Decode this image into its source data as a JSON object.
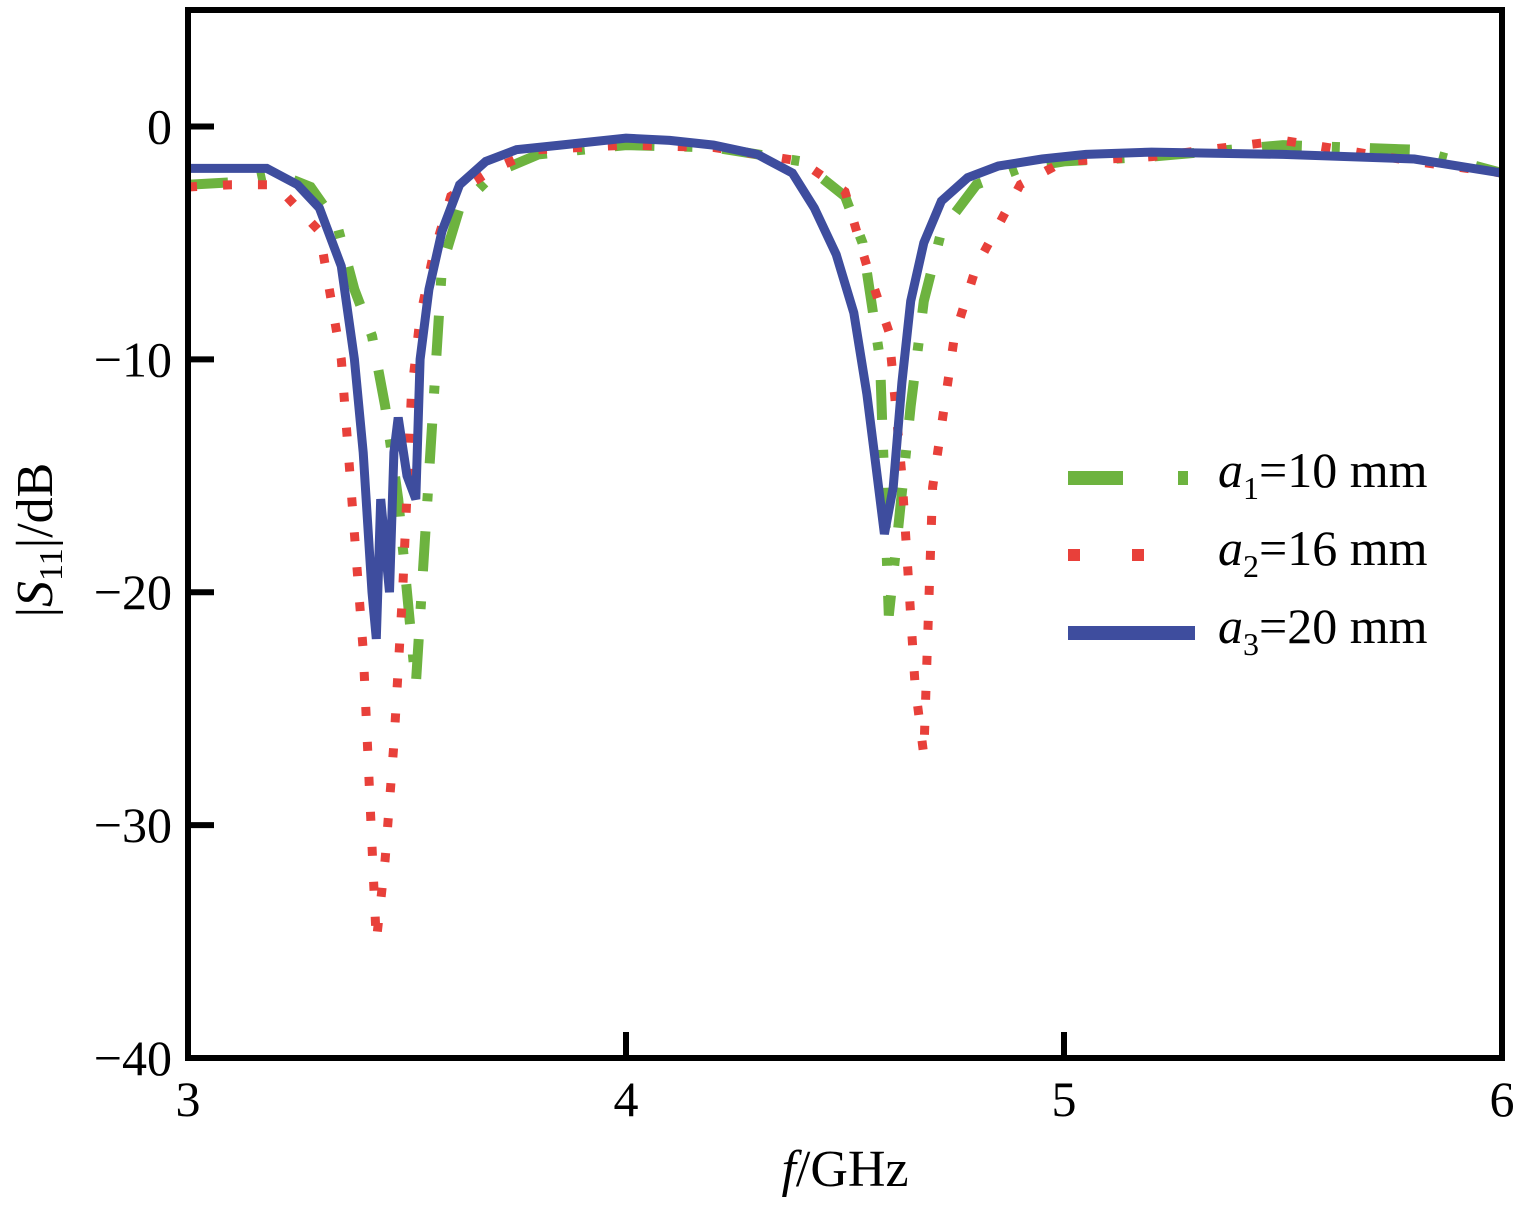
{
  "chart_data": {
    "type": "line",
    "xlabel": {
      "italic": "f",
      "rest": "/GHz"
    },
    "ylabel": {
      "pre": "|",
      "italic": "S",
      "sub": "11",
      "post": "|/dB"
    },
    "xlim": [
      3,
      6
    ],
    "ylim": [
      -40,
      5
    ],
    "xticks": [
      3,
      4,
      5,
      6
    ],
    "yticks": [
      0,
      -10,
      -20,
      -30,
      -40
    ],
    "xtick_labels": [
      "3",
      "4",
      "5",
      "6"
    ],
    "ytick_labels": [
      "0",
      "−10",
      "−20",
      "−30",
      "−40"
    ],
    "legend_position": "right-middle",
    "series": [
      {
        "name": "a1=10 mm",
        "label": {
          "var": "a",
          "sub": "1",
          "rest": "=10 mm"
        },
        "color": "#6db33f",
        "style": "dash-dot",
        "x": [
          3.0,
          3.1,
          3.2,
          3.28,
          3.34,
          3.38,
          3.42,
          3.45,
          3.48,
          3.5,
          3.52,
          3.55,
          3.58,
          3.62,
          3.7,
          3.8,
          4.0,
          4.2,
          4.4,
          4.5,
          4.54,
          4.58,
          4.6,
          4.62,
          4.65,
          4.68,
          4.72,
          4.8,
          4.9,
          5.0,
          5.2,
          5.5,
          5.8,
          6.0
        ],
        "y": [
          -2.5,
          -2.4,
          -2.0,
          -2.6,
          -4.2,
          -7.0,
          -9.0,
          -12.0,
          -16.0,
          -20.0,
          -24.0,
          -15.0,
          -6.0,
          -3.5,
          -2.0,
          -1.2,
          -0.8,
          -0.9,
          -1.5,
          -3.0,
          -5.0,
          -10.0,
          -21.0,
          -17.5,
          -12.0,
          -7.5,
          -4.5,
          -2.5,
          -1.8,
          -1.5,
          -1.3,
          -0.8,
          -1.0,
          -2.0
        ]
      },
      {
        "name": "a2=16 mm",
        "label": {
          "var": "a",
          "sub": "2",
          "rest": "=16 mm"
        },
        "color": "#e8403a",
        "style": "dotted",
        "x": [
          3.0,
          3.1,
          3.2,
          3.3,
          3.35,
          3.4,
          3.43,
          3.45,
          3.47,
          3.49,
          3.51,
          3.53,
          3.56,
          3.6,
          3.7,
          3.8,
          4.0,
          4.2,
          4.4,
          4.5,
          4.55,
          4.6,
          4.63,
          4.66,
          4.68,
          4.7,
          4.75,
          4.8,
          4.9,
          5.0,
          5.2,
          5.5,
          5.8,
          6.0
        ],
        "y": [
          -2.6,
          -2.5,
          -2.5,
          -4.5,
          -10.0,
          -22.5,
          -35.0,
          -31.5,
          -26.5,
          -20.0,
          -11.5,
          -8.2,
          -5.5,
          -3.0,
          -1.8,
          -1.0,
          -0.8,
          -0.9,
          -1.5,
          -2.8,
          -6.0,
          -8.8,
          -15.0,
          -24.0,
          -27.0,
          -15.5,
          -9.0,
          -6.0,
          -2.5,
          -1.5,
          -1.3,
          -0.6,
          -1.5,
          -2.0
        ]
      },
      {
        "name": "a3=20 mm",
        "label": {
          "var": "a",
          "sub": "3",
          "rest": "=20 mm"
        },
        "color": "#3e4d9e",
        "style": "solid",
        "x": [
          3.0,
          3.1,
          3.18,
          3.25,
          3.3,
          3.35,
          3.38,
          3.4,
          3.42,
          3.43,
          3.44,
          3.46,
          3.47,
          3.48,
          3.5,
          3.52,
          3.53,
          3.55,
          3.58,
          3.62,
          3.68,
          3.75,
          3.85,
          4.0,
          4.1,
          4.2,
          4.3,
          4.38,
          4.43,
          4.48,
          4.52,
          4.55,
          4.57,
          4.59,
          4.61,
          4.63,
          4.65,
          4.68,
          4.72,
          4.78,
          4.85,
          4.95,
          5.05,
          5.2,
          5.5,
          5.8,
          6.0
        ],
        "y": [
          -1.8,
          -1.8,
          -1.8,
          -2.5,
          -3.5,
          -6.0,
          -10.0,
          -14.0,
          -20.0,
          -22.0,
          -16.0,
          -20.0,
          -14.0,
          -12.5,
          -15.0,
          -16.0,
          -10.0,
          -7.0,
          -4.5,
          -2.5,
          -1.5,
          -1.0,
          -0.8,
          -0.5,
          -0.6,
          -0.8,
          -1.2,
          -2.0,
          -3.5,
          -5.5,
          -8.0,
          -11.5,
          -14.5,
          -17.5,
          -15.5,
          -11.0,
          -7.5,
          -5.0,
          -3.2,
          -2.2,
          -1.7,
          -1.4,
          -1.2,
          -1.1,
          -1.2,
          -1.4,
          -2.0
        ]
      }
    ]
  }
}
